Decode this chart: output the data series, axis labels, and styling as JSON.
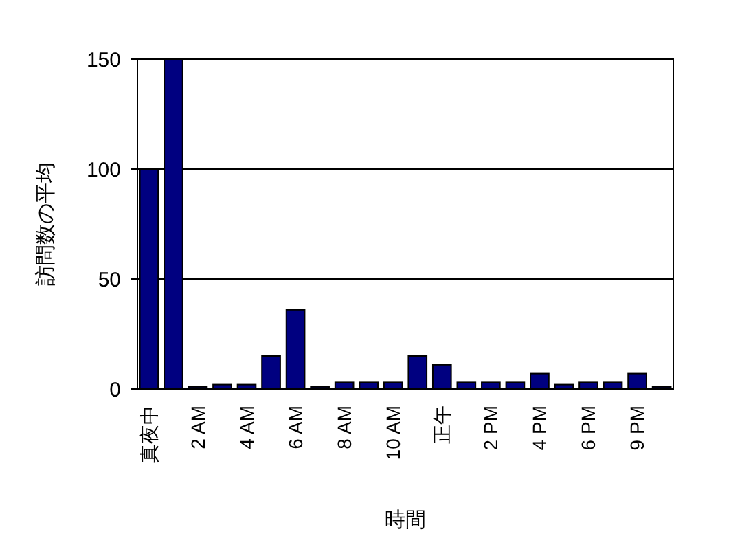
{
  "chart_data": {
    "type": "bar",
    "xlabel": "時間",
    "ylabel": "訪問数の平均",
    "categories": [
      "真夜中",
      null,
      "2 AM",
      null,
      "4 AM",
      null,
      "6 AM",
      null,
      "8 AM",
      null,
      "10 AM",
      null,
      "正午",
      null,
      "2 PM",
      null,
      "4 PM",
      null,
      "6 PM",
      null,
      "9 PM",
      null
    ],
    "values": [
      100,
      150,
      1,
      2,
      2,
      15,
      36,
      1,
      3,
      3,
      3,
      15,
      11,
      3,
      3,
      3,
      7,
      2,
      3,
      3,
      7,
      1
    ],
    "color": "#000080",
    "ylim": [
      0,
      150
    ],
    "yticks": [
      0,
      50,
      100,
      150
    ],
    "grid": "y"
  }
}
